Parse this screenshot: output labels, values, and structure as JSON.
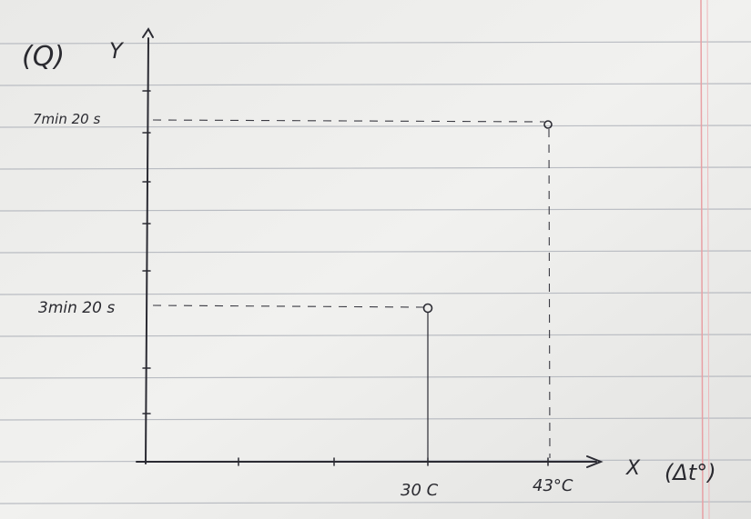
{
  "panel_label": "(Q)",
  "y_axis": {
    "label": "Y",
    "marks": [
      "7min 20 s",
      "3min 20 s"
    ]
  },
  "x_axis": {
    "label": "X",
    "unit": "(Δt°)",
    "marks": [
      "30 C",
      "43°C"
    ]
  }
}
